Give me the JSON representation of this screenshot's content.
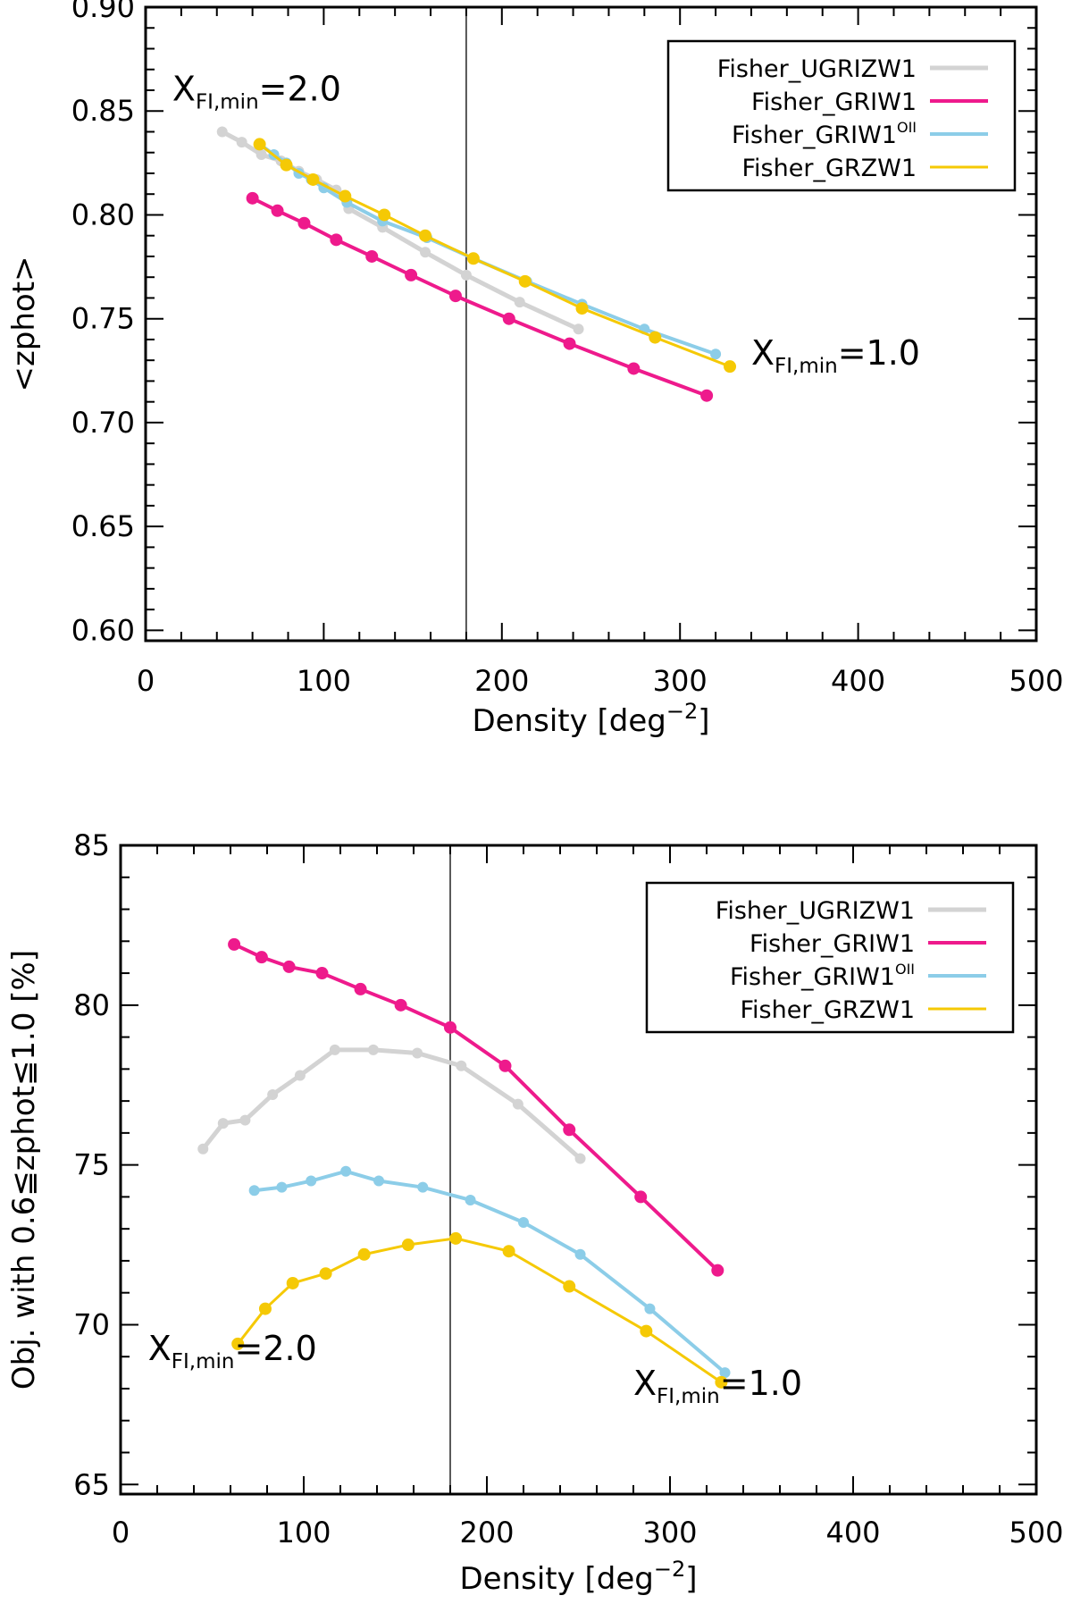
{
  "colors": {
    "Fisher_UGRIZW1": "#d3d3d3",
    "Fisher_GRIW1": "#ee1a8c",
    "Fisher_GRIW1_OII": "#8ccde8",
    "Fisher_GRZW1": "#f5c905",
    "vline": "#000000"
  },
  "chart_data": [
    {
      "type": "line",
      "xlabel": "Density [deg",
      "xlabel_sup": "−2",
      "xlabel_end": "]",
      "ylabel": "<zphot>",
      "xlim": [
        0,
        500
      ],
      "ylim": [
        0.595,
        0.9
      ],
      "xticks": [
        0,
        100,
        200,
        300,
        400,
        500
      ],
      "xtick_labels": [
        "0",
        "100",
        "200",
        "300",
        "400",
        "500"
      ],
      "yticks": [
        0.6,
        0.65,
        0.7,
        0.75,
        0.8,
        0.85,
        0.9
      ],
      "ytick_labels": [
        "0.60",
        "0.65",
        "0.70",
        "0.75",
        "0.80",
        "0.85",
        "0.90"
      ],
      "vline_x": 180,
      "legend_placement": "top-right",
      "legend": [
        {
          "label": "Fisher_UGRIZW1",
          "sup": ""
        },
        {
          "label": "Fisher_GRIW1",
          "sup": ""
        },
        {
          "label": "Fisher_GRIW1",
          "sup": "OII"
        },
        {
          "label": "Fisher_GRZW1",
          "sup": ""
        }
      ],
      "annotations": [
        {
          "main": "X",
          "sub": "FI,min",
          "value": "=2.0",
          "x": 15,
          "y": 0.855
        },
        {
          "main": "X",
          "sub": "FI,min",
          "value": "=1.0",
          "x": 340,
          "y": 0.728
        }
      ],
      "series": [
        {
          "name": "Fisher_UGRIZW1",
          "color_key": "Fisher_UGRIZW1",
          "stroke": 5,
          "marker": 6,
          "x": [
            43,
            54,
            65,
            76,
            86,
            96,
            107,
            114,
            133,
            157,
            180,
            210,
            243
          ],
          "y": [
            0.84,
            0.835,
            0.829,
            0.826,
            0.821,
            0.817,
            0.812,
            0.803,
            0.794,
            0.782,
            0.771,
            0.758,
            0.745
          ]
        },
        {
          "name": "Fisher_GRIW1",
          "color_key": "Fisher_GRIW1",
          "stroke": 4,
          "marker": 7,
          "x": [
            60,
            74,
            89,
            107,
            127,
            149,
            174,
            204,
            238,
            274,
            315
          ],
          "y": [
            0.808,
            0.802,
            0.796,
            0.788,
            0.78,
            0.771,
            0.761,
            0.75,
            0.738,
            0.726,
            0.713
          ]
        },
        {
          "name": "Fisher_GRIW1",
          "color_key": "Fisher_GRIW1_OII",
          "stroke": 4,
          "marker": 6,
          "x": [
            64,
            72,
            79,
            86,
            93,
            100,
            113,
            133,
            158,
            184,
            214,
            245,
            280,
            320
          ],
          "y": [
            0.834,
            0.829,
            0.825,
            0.82,
            0.817,
            0.813,
            0.806,
            0.797,
            0.789,
            0.779,
            0.768,
            0.757,
            0.745,
            0.733
          ]
        },
        {
          "name": "Fisher_GRZW1",
          "color_key": "Fisher_GRZW1",
          "stroke": 3,
          "marker": 7,
          "x": [
            64,
            79,
            94,
            112,
            134,
            157,
            184,
            213,
            245,
            286,
            328
          ],
          "y": [
            0.834,
            0.824,
            0.817,
            0.809,
            0.8,
            0.79,
            0.779,
            0.768,
            0.755,
            0.741,
            0.727
          ]
        }
      ]
    },
    {
      "type": "line",
      "xlabel": "Density [deg",
      "xlabel_sup": "−2",
      "xlabel_end": "]",
      "ylabel": "Obj. with 0.6≦zphot≦1.0 [%]",
      "xlim": [
        0,
        500
      ],
      "ylim": [
        64.7,
        85
      ],
      "xticks": [
        0,
        100,
        200,
        300,
        400,
        500
      ],
      "xtick_labels": [
        "0",
        "100",
        "200",
        "300",
        "400",
        "500"
      ],
      "yticks": [
        65,
        70,
        75,
        80,
        85
      ],
      "ytick_labels": [
        "65",
        "70",
        "75",
        "80",
        "85"
      ],
      "vline_x": 180,
      "legend_placement": "top-right",
      "legend": [
        {
          "label": "Fisher_UGRIZW1",
          "sup": ""
        },
        {
          "label": "Fisher_GRIW1",
          "sup": ""
        },
        {
          "label": "Fisher_GRIW1",
          "sup": "OII"
        },
        {
          "label": "Fisher_GRZW1",
          "sup": ""
        }
      ],
      "annotations": [
        {
          "main": "X",
          "sub": "FI,min",
          "value": "=2.0",
          "x": 15,
          "y": 68.9
        },
        {
          "main": "X",
          "sub": "FI,min",
          "value": "=1.0",
          "x": 280,
          "y": 67.8
        }
      ],
      "series": [
        {
          "name": "Fisher_UGRIZW1",
          "color_key": "Fisher_UGRIZW1",
          "stroke": 5,
          "marker": 6,
          "x": [
            45,
            56,
            68,
            83,
            98,
            117,
            138,
            162,
            186,
            217,
            251
          ],
          "y": [
            75.5,
            76.3,
            76.4,
            77.2,
            77.8,
            78.6,
            78.6,
            78.5,
            78.1,
            76.9,
            75.2
          ]
        },
        {
          "name": "Fisher_GRIW1",
          "color_key": "Fisher_GRIW1",
          "stroke": 4,
          "marker": 7,
          "x": [
            62,
            77,
            92,
            110,
            131,
            153,
            180,
            210,
            245,
            284,
            326
          ],
          "y": [
            81.9,
            81.5,
            81.2,
            81.0,
            80.5,
            80.0,
            79.3,
            78.1,
            76.1,
            74.0,
            71.7
          ]
        },
        {
          "name": "Fisher_GRIW1",
          "color_key": "Fisher_GRIW1_OII",
          "stroke": 4,
          "marker": 6,
          "x": [
            73,
            88,
            104,
            123,
            141,
            165,
            191,
            220,
            251,
            289,
            330
          ],
          "y": [
            74.2,
            74.3,
            74.5,
            74.8,
            74.5,
            74.3,
            73.9,
            73.2,
            72.2,
            70.5,
            68.5
          ]
        },
        {
          "name": "Fisher_GRZW1",
          "color_key": "Fisher_GRZW1",
          "stroke": 3,
          "marker": 7,
          "x": [
            64,
            79,
            94,
            112,
            133,
            157,
            183,
            212,
            245,
            287,
            328
          ],
          "y": [
            69.4,
            70.5,
            71.3,
            71.6,
            72.2,
            72.5,
            72.7,
            72.3,
            71.2,
            69.8,
            68.2
          ]
        }
      ]
    }
  ]
}
